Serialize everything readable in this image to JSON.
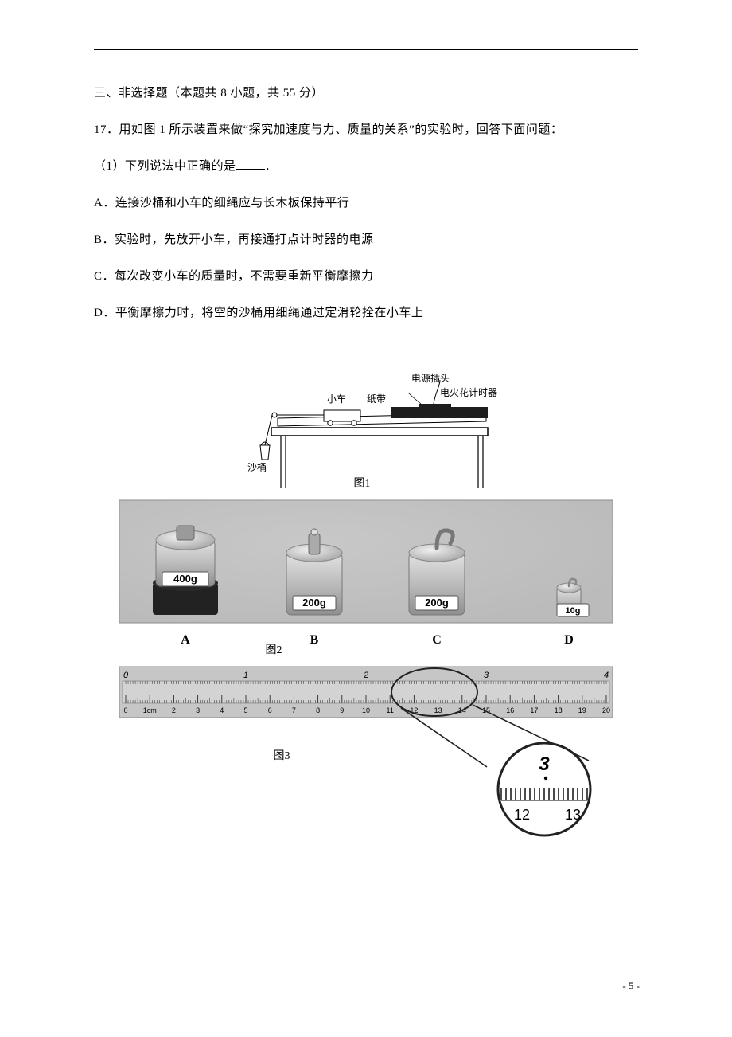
{
  "section": "三、非选择题（本题共 8 小题，共 55 分）",
  "question": {
    "num": "17．",
    "stem": "用如图 1 所示装置来做“探究加速度与力、质量的关系”的实验时，回答下面问题：",
    "sub": "（1）下列说法中正确的是",
    "sub_tail": "．",
    "options": {
      "A": "A．连接沙桶和小车的细绳应与长木板保持平行",
      "B": "B．实验时，先放开小车，再接通打点计时器的电源",
      "C": "C．每次改变小车的质量时，不需要重新平衡摩擦力",
      "D": "D．平衡摩擦力时，将空的沙桶用细绳通过定滑轮拴在小车上"
    }
  },
  "figures": {
    "fig1": {
      "label": "图1",
      "labels": {
        "sand": "沙桶",
        "cart": "小车",
        "tape": "纸带",
        "plug": "电源插头",
        "timer": "电火花计时器"
      },
      "colors": {
        "stroke": "#000000",
        "bg": "#ffffff",
        "dark": "#1e1e1e"
      }
    },
    "fig2": {
      "label": "图2",
      "weights": [
        {
          "letter": "A",
          "mass": "400g"
        },
        {
          "letter": "B",
          "mass": "200g"
        },
        {
          "letter": "C",
          "mass": "200g"
        },
        {
          "letter": "D",
          "mass": "10g"
        }
      ],
      "colors": {
        "panel": "#bfbfbf",
        "dark": "#2a2a2a",
        "metal": "#c9c9c9",
        "edge": "#808080"
      }
    },
    "fig3": {
      "label": "图3",
      "upper_large_marks": [
        "0",
        "1",
        "2",
        "3",
        "4"
      ],
      "lower_marks": [
        "0",
        "1cm",
        "2",
        "3",
        "4",
        "5",
        "6",
        "7",
        "8",
        "9",
        "10",
        "11",
        "12",
        "13",
        "14",
        "15",
        "16",
        "17",
        "18",
        "19",
        "20"
      ],
      "mag": {
        "top_mark": "3",
        "bottom_left": "12",
        "bottom_right": "13"
      },
      "colors": {
        "panel": "#c6c6c6",
        "tick": "#2b2b2b",
        "circle": "#222222"
      }
    }
  },
  "footer": "- 5 -"
}
